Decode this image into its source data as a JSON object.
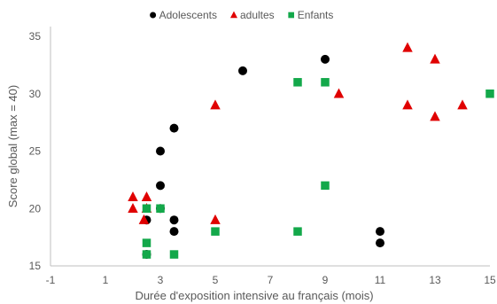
{
  "chart_data": {
    "type": "scatter",
    "xlabel": "Durée d'exposition intensive au français (mois)",
    "ylabel": "Score global (max = 40)",
    "xlim": [
      -1,
      15
    ],
    "ylim": [
      15,
      35
    ],
    "x_ticks": [
      -1,
      1,
      3,
      5,
      7,
      9,
      11,
      13,
      15
    ],
    "y_ticks": [
      15,
      20,
      25,
      30,
      35
    ],
    "grid": false,
    "legend_position": "top-center",
    "series": [
      {
        "name": "Adolescents",
        "marker": "circle",
        "color": "#000000",
        "points": [
          {
            "x": 2.5,
            "y": 19
          },
          {
            "x": 2.5,
            "y": 16
          },
          {
            "x": 3,
            "y": 22
          },
          {
            "x": 3,
            "y": 25
          },
          {
            "x": 3,
            "y": 20
          },
          {
            "x": 3.5,
            "y": 27
          },
          {
            "x": 3.5,
            "y": 19
          },
          {
            "x": 3.5,
            "y": 18
          },
          {
            "x": 6,
            "y": 32
          },
          {
            "x": 9,
            "y": 33
          },
          {
            "x": 11,
            "y": 18
          },
          {
            "x": 11,
            "y": 17
          }
        ]
      },
      {
        "name": "adultes",
        "marker": "triangle",
        "color": "#e00000",
        "points": [
          {
            "x": 2,
            "y": 21
          },
          {
            "x": 2,
            "y": 20
          },
          {
            "x": 2.4,
            "y": 19
          },
          {
            "x": 2.5,
            "y": 21
          },
          {
            "x": 2.5,
            "y": 20
          },
          {
            "x": 5,
            "y": 29
          },
          {
            "x": 5,
            "y": 19
          },
          {
            "x": 9.5,
            "y": 30
          },
          {
            "x": 12,
            "y": 34
          },
          {
            "x": 12,
            "y": 29
          },
          {
            "x": 13,
            "y": 33
          },
          {
            "x": 13,
            "y": 28
          },
          {
            "x": 14,
            "y": 29
          }
        ]
      },
      {
        "name": "Enfants",
        "marker": "square",
        "color": "#13a84a",
        "points": [
          {
            "x": 2.5,
            "y": 20
          },
          {
            "x": 2.5,
            "y": 17
          },
          {
            "x": 2.5,
            "y": 16
          },
          {
            "x": 3,
            "y": 20
          },
          {
            "x": 3.5,
            "y": 16
          },
          {
            "x": 5,
            "y": 18
          },
          {
            "x": 8,
            "y": 31
          },
          {
            "x": 8,
            "y": 18
          },
          {
            "x": 9,
            "y": 31
          },
          {
            "x": 9,
            "y": 22
          },
          {
            "x": 15,
            "y": 30
          }
        ]
      }
    ]
  }
}
